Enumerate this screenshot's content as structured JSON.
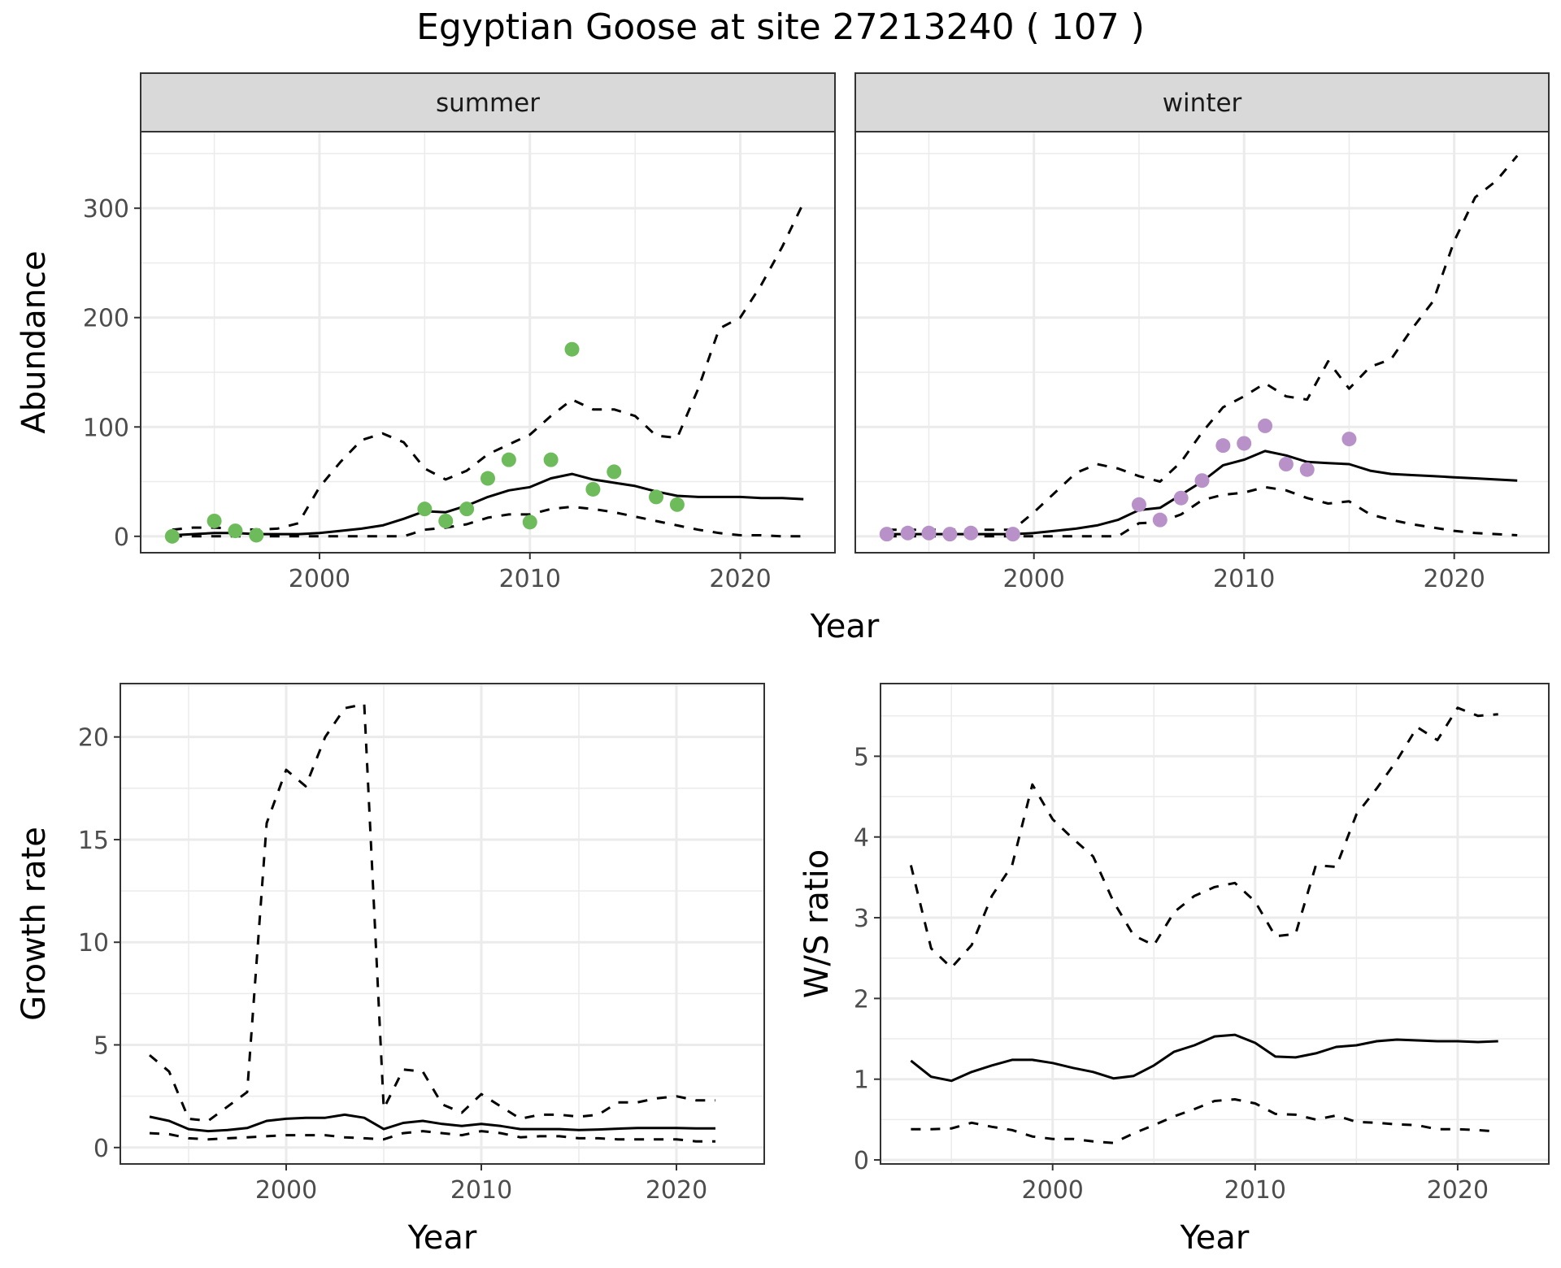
{
  "title": "Egyptian Goose at site 27213240 ( 107 )",
  "colors": {
    "summer_points": "#6dbb5a",
    "winter_points": "#b891c9",
    "strip_bg": "#d9d9d9",
    "grid": "#ebebeb"
  },
  "chart_data": [
    {
      "type": "line",
      "panel": "summer",
      "strip_label": "summer",
      "ylabel": "Abundance",
      "xlabel": "Year",
      "xlim": [
        1991.5,
        2024.5
      ],
      "ylim": [
        -15,
        370
      ],
      "xticks": [
        2000,
        2010,
        2020
      ],
      "yticks": [
        0,
        100,
        200,
        300
      ],
      "points": {
        "x": [
          1993,
          1995,
          1996,
          1997,
          2005,
          2006,
          2007,
          2008,
          2009,
          2010,
          2011,
          2012,
          2013,
          2014,
          2016,
          2017
        ],
        "y": [
          0,
          14,
          5,
          1,
          25,
          14,
          25,
          53,
          70,
          13,
          70,
          171,
          43,
          59,
          36,
          29
        ]
      },
      "series": [
        {
          "name": "estimate",
          "style": "solid",
          "x": [
            1993,
            1994,
            1995,
            1996,
            1997,
            1998,
            1999,
            2000,
            2001,
            2002,
            2003,
            2004,
            2005,
            2006,
            2007,
            2008,
            2009,
            2010,
            2011,
            2012,
            2013,
            2014,
            2015,
            2016,
            2017,
            2018,
            2019,
            2020,
            2021,
            2022,
            2023
          ],
          "y": [
            1,
            2,
            3,
            3,
            2,
            2,
            2,
            3,
            5,
            7,
            10,
            16,
            23,
            22,
            28,
            36,
            42,
            45,
            53,
            57,
            52,
            49,
            46,
            41,
            37,
            36,
            36,
            36,
            35,
            35,
            34
          ]
        },
        {
          "name": "upper",
          "style": "dashed",
          "x": [
            1993,
            1994,
            1995,
            1996,
            1997,
            1998,
            1999,
            2000,
            2001,
            2002,
            2003,
            2004,
            2005,
            2006,
            2007,
            2008,
            2009,
            2010,
            2011,
            2012,
            2013,
            2014,
            2015,
            2016,
            2017,
            2018,
            2019,
            2020,
            2021,
            2022,
            2023
          ],
          "y": [
            6,
            8,
            8,
            7,
            6,
            7,
            12,
            45,
            68,
            88,
            94,
            86,
            62,
            52,
            60,
            75,
            84,
            93,
            110,
            125,
            116,
            116,
            110,
            92,
            90,
            135,
            190,
            200,
            230,
            265,
            305
          ]
        },
        {
          "name": "lower",
          "style": "dashed",
          "x": [
            1993,
            1994,
            1995,
            1996,
            1997,
            1998,
            1999,
            2000,
            2001,
            2002,
            2003,
            2004,
            2005,
            2006,
            2007,
            2008,
            2009,
            2010,
            2011,
            2012,
            2013,
            2014,
            2015,
            2016,
            2017,
            2018,
            2019,
            2020,
            2021,
            2022,
            2023
          ],
          "y": [
            0,
            0,
            0,
            0,
            0,
            0,
            0,
            0,
            0,
            0,
            0,
            0,
            6,
            8,
            11,
            17,
            20,
            20,
            25,
            27,
            25,
            22,
            18,
            14,
            10,
            6,
            3,
            1,
            1,
            0,
            0
          ]
        }
      ]
    },
    {
      "type": "line",
      "panel": "winter",
      "strip_label": "winter",
      "xlim": [
        1991.5,
        2024.5
      ],
      "ylim": [
        -15,
        370
      ],
      "xticks": [
        2000,
        2010,
        2020
      ],
      "points": {
        "x": [
          1993,
          1994,
          1995,
          1996,
          1997,
          1999,
          2005,
          2006,
          2007,
          2008,
          2009,
          2010,
          2011,
          2012,
          2013,
          2015
        ],
        "y": [
          2,
          3,
          3,
          2,
          3,
          2,
          29,
          15,
          35,
          51,
          83,
          85,
          101,
          66,
          61,
          89
        ]
      },
      "series": [
        {
          "name": "estimate",
          "style": "solid",
          "x": [
            1993,
            1994,
            1995,
            1996,
            1997,
            1998,
            1999,
            2000,
            2001,
            2002,
            2003,
            2004,
            2005,
            2006,
            2007,
            2008,
            2009,
            2010,
            2011,
            2012,
            2013,
            2014,
            2015,
            2016,
            2017,
            2018,
            2019,
            2020,
            2021,
            2022,
            2023
          ],
          "y": [
            2,
            2,
            2,
            2,
            2,
            2,
            2,
            3,
            5,
            7,
            10,
            15,
            24,
            26,
            38,
            50,
            65,
            70,
            78,
            74,
            68,
            67,
            66,
            60,
            57,
            56,
            55,
            54,
            53,
            52,
            51
          ]
        },
        {
          "name": "upper",
          "style": "dashed",
          "x": [
            1993,
            1994,
            1995,
            1996,
            1997,
            1998,
            1999,
            2000,
            2001,
            2002,
            2003,
            2004,
            2005,
            2006,
            2007,
            2008,
            2009,
            2010,
            2011,
            2012,
            2013,
            2014,
            2015,
            2016,
            2017,
            2018,
            2019,
            2020,
            2021,
            2022,
            2023
          ],
          "y": [
            6,
            6,
            6,
            6,
            6,
            6,
            6,
            22,
            40,
            58,
            66,
            62,
            55,
            50,
            68,
            95,
            118,
            128,
            140,
            128,
            125,
            160,
            135,
            155,
            162,
            190,
            215,
            270,
            310,
            325,
            348
          ]
        },
        {
          "name": "lower",
          "style": "dashed",
          "x": [
            1993,
            1994,
            1995,
            1996,
            1997,
            1998,
            1999,
            2000,
            2001,
            2002,
            2003,
            2004,
            2005,
            2006,
            2007,
            2008,
            2009,
            2010,
            2011,
            2012,
            2013,
            2014,
            2015,
            2016,
            2017,
            2018,
            2019,
            2020,
            2021,
            2022,
            2023
          ],
          "y": [
            0,
            0,
            0,
            0,
            0,
            0,
            0,
            0,
            0,
            0,
            0,
            0,
            12,
            13,
            20,
            33,
            38,
            40,
            45,
            42,
            35,
            30,
            32,
            20,
            15,
            11,
            8,
            5,
            3,
            2,
            1
          ]
        }
      ],
      "shared_xlabel": "Year"
    },
    {
      "type": "line",
      "panel": "growth",
      "ylabel": "Growth rate",
      "xlabel": "Year",
      "xlim": [
        1991.5,
        2024.5
      ],
      "ylim": [
        -0.8,
        22.6
      ],
      "xticks": [
        2000,
        2010,
        2020
      ],
      "yticks": [
        0,
        5,
        10,
        15,
        20
      ],
      "series": [
        {
          "name": "estimate",
          "style": "solid",
          "x": [
            1993,
            1994,
            1995,
            1996,
            1997,
            1998,
            1999,
            2000,
            2001,
            2002,
            2003,
            2004,
            2005,
            2006,
            2007,
            2008,
            2009,
            2010,
            2011,
            2012,
            2013,
            2014,
            2015,
            2016,
            2017,
            2018,
            2019,
            2020,
            2021,
            2022
          ],
          "y": [
            1.5,
            1.3,
            0.9,
            0.8,
            0.85,
            0.95,
            1.3,
            1.4,
            1.45,
            1.45,
            1.6,
            1.45,
            0.9,
            1.2,
            1.3,
            1.15,
            1.05,
            1.15,
            1.05,
            0.9,
            0.9,
            0.9,
            0.85,
            0.88,
            0.92,
            0.95,
            0.95,
            0.95,
            0.93,
            0.93
          ]
        },
        {
          "name": "upper",
          "style": "dashed",
          "x": [
            1993,
            1994,
            1995,
            1996,
            1997,
            1998,
            1999,
            2000,
            2001,
            2002,
            2003,
            2004,
            2005,
            2006,
            2007,
            2008,
            2009,
            2010,
            2011,
            2012,
            2013,
            2014,
            2015,
            2016,
            2017,
            2018,
            2019,
            2020,
            2021,
            2022
          ],
          "y": [
            4.5,
            3.7,
            1.4,
            1.3,
            2.0,
            2.7,
            15.8,
            18.4,
            17.6,
            20.0,
            21.4,
            21.6,
            1.9,
            3.8,
            3.7,
            2.1,
            1.7,
            2.6,
            2.0,
            1.4,
            1.6,
            1.6,
            1.5,
            1.6,
            2.2,
            2.2,
            2.4,
            2.5,
            2.3,
            2.3
          ]
        },
        {
          "name": "lower",
          "style": "dashed",
          "x": [
            1993,
            1994,
            1995,
            1996,
            1997,
            1998,
            1999,
            2000,
            2001,
            2002,
            2003,
            2004,
            2005,
            2006,
            2007,
            2008,
            2009,
            2010,
            2011,
            2012,
            2013,
            2014,
            2015,
            2016,
            2017,
            2018,
            2019,
            2020,
            2021,
            2022
          ],
          "y": [
            0.7,
            0.65,
            0.45,
            0.4,
            0.45,
            0.5,
            0.55,
            0.6,
            0.6,
            0.6,
            0.5,
            0.45,
            0.4,
            0.7,
            0.8,
            0.7,
            0.6,
            0.8,
            0.7,
            0.5,
            0.55,
            0.55,
            0.45,
            0.45,
            0.4,
            0.4,
            0.4,
            0.4,
            0.3,
            0.3
          ]
        }
      ]
    },
    {
      "type": "line",
      "panel": "ws_ratio",
      "ylabel": "W/S ratio",
      "xlabel": "Year",
      "xlim": [
        1991.5,
        2024.5
      ],
      "ylim": [
        -0.05,
        5.9
      ],
      "xticks": [
        2000,
        2010,
        2020
      ],
      "yticks": [
        0,
        1,
        2,
        3,
        4,
        5
      ],
      "series": [
        {
          "name": "estimate",
          "style": "solid",
          "x": [
            1993,
            1994,
            1995,
            1996,
            1997,
            1998,
            1999,
            2000,
            2001,
            2002,
            2003,
            2004,
            2005,
            2006,
            2007,
            2008,
            2009,
            2010,
            2011,
            2012,
            2013,
            2014,
            2015,
            2016,
            2017,
            2018,
            2019,
            2020,
            2021,
            2022
          ],
          "y": [
            1.23,
            1.03,
            0.98,
            1.09,
            1.17,
            1.24,
            1.24,
            1.2,
            1.14,
            1.09,
            1.01,
            1.04,
            1.17,
            1.34,
            1.42,
            1.53,
            1.55,
            1.45,
            1.28,
            1.27,
            1.32,
            1.4,
            1.42,
            1.47,
            1.49,
            1.48,
            1.47,
            1.47,
            1.46,
            1.47
          ]
        },
        {
          "name": "upper",
          "style": "dashed",
          "x": [
            1993,
            1994,
            1995,
            1996,
            1997,
            1998,
            1999,
            2000,
            2001,
            2002,
            2003,
            2004,
            2005,
            2006,
            2007,
            2008,
            2009,
            2010,
            2011,
            2012,
            2013,
            2014,
            2015,
            2016,
            2017,
            2018,
            2019,
            2020,
            2021,
            2022
          ],
          "y": [
            3.65,
            2.62,
            2.38,
            2.66,
            3.27,
            3.65,
            4.65,
            4.22,
            3.98,
            3.76,
            3.2,
            2.78,
            2.66,
            3.07,
            3.27,
            3.38,
            3.43,
            3.2,
            2.77,
            2.8,
            3.65,
            3.63,
            4.28,
            4.6,
            4.95,
            5.36,
            5.2,
            5.6,
            5.5,
            5.52
          ]
        },
        {
          "name": "lower",
          "style": "dashed",
          "x": [
            1993,
            1994,
            1995,
            1996,
            1997,
            1998,
            1999,
            2000,
            2001,
            2002,
            2003,
            2004,
            2005,
            2006,
            2007,
            2008,
            2009,
            2010,
            2011,
            2012,
            2013,
            2014,
            2015,
            2016,
            2017,
            2018,
            2019,
            2020,
            2021,
            2022
          ],
          "y": [
            0.38,
            0.38,
            0.39,
            0.46,
            0.41,
            0.37,
            0.29,
            0.26,
            0.26,
            0.23,
            0.21,
            0.33,
            0.43,
            0.54,
            0.63,
            0.73,
            0.75,
            0.7,
            0.57,
            0.56,
            0.5,
            0.55,
            0.47,
            0.46,
            0.44,
            0.43,
            0.38,
            0.38,
            0.37,
            0.35
          ]
        }
      ]
    }
  ]
}
